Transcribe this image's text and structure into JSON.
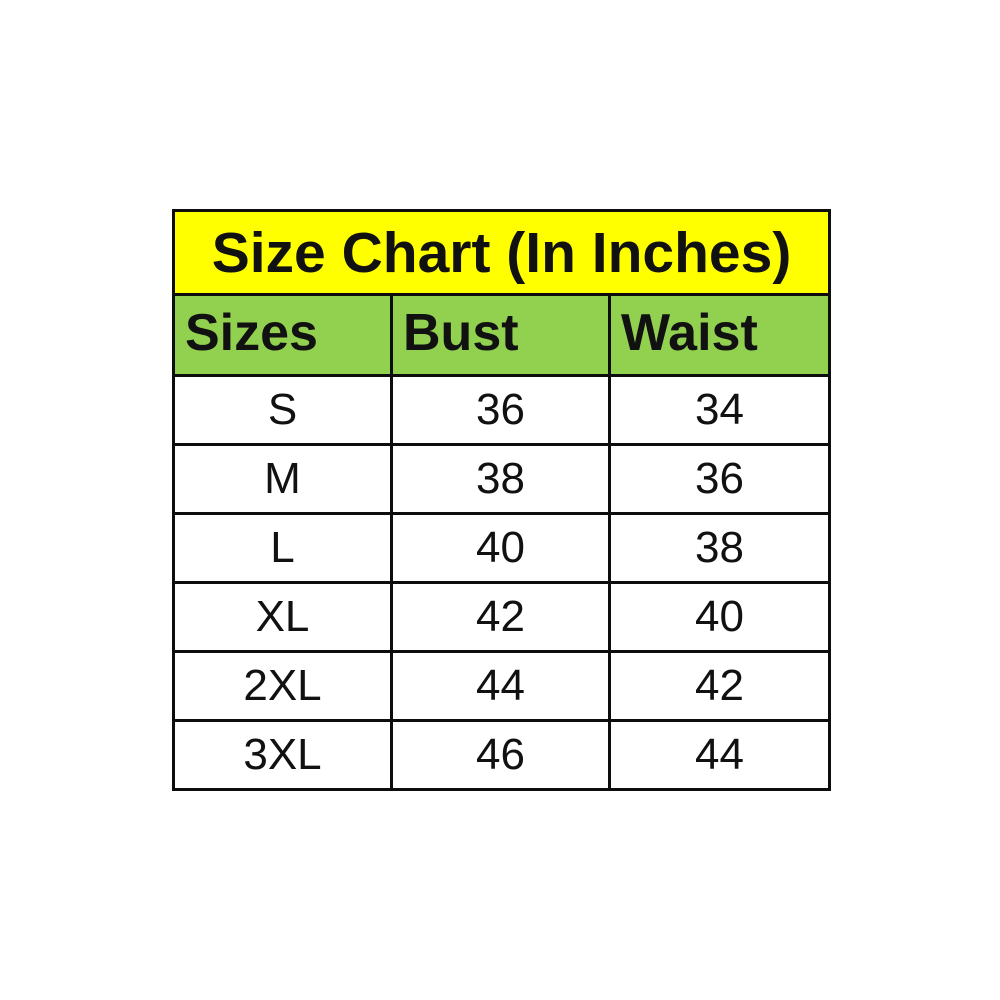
{
  "page": {
    "background_color": "#ffffff"
  },
  "chart_data": {
    "type": "table",
    "title": "Size Chart (In Inches)",
    "columns": [
      "Sizes",
      "Bust",
      "Waist"
    ],
    "rows": [
      [
        "S",
        "36",
        "34"
      ],
      [
        "M",
        "38",
        "36"
      ],
      [
        "L",
        "40",
        "38"
      ],
      [
        "XL",
        "42",
        "40"
      ],
      [
        "2XL",
        "44",
        "42"
      ],
      [
        "3XL",
        "46",
        "44"
      ]
    ],
    "layout": {
      "title_bg": "#ffff00",
      "header_bg": "#92d050",
      "row_bg": "#ffffff",
      "border_color": "#0d0d0d",
      "text_color": "#111111",
      "title_align": "center",
      "header_align": "left",
      "data_align": "center"
    }
  }
}
